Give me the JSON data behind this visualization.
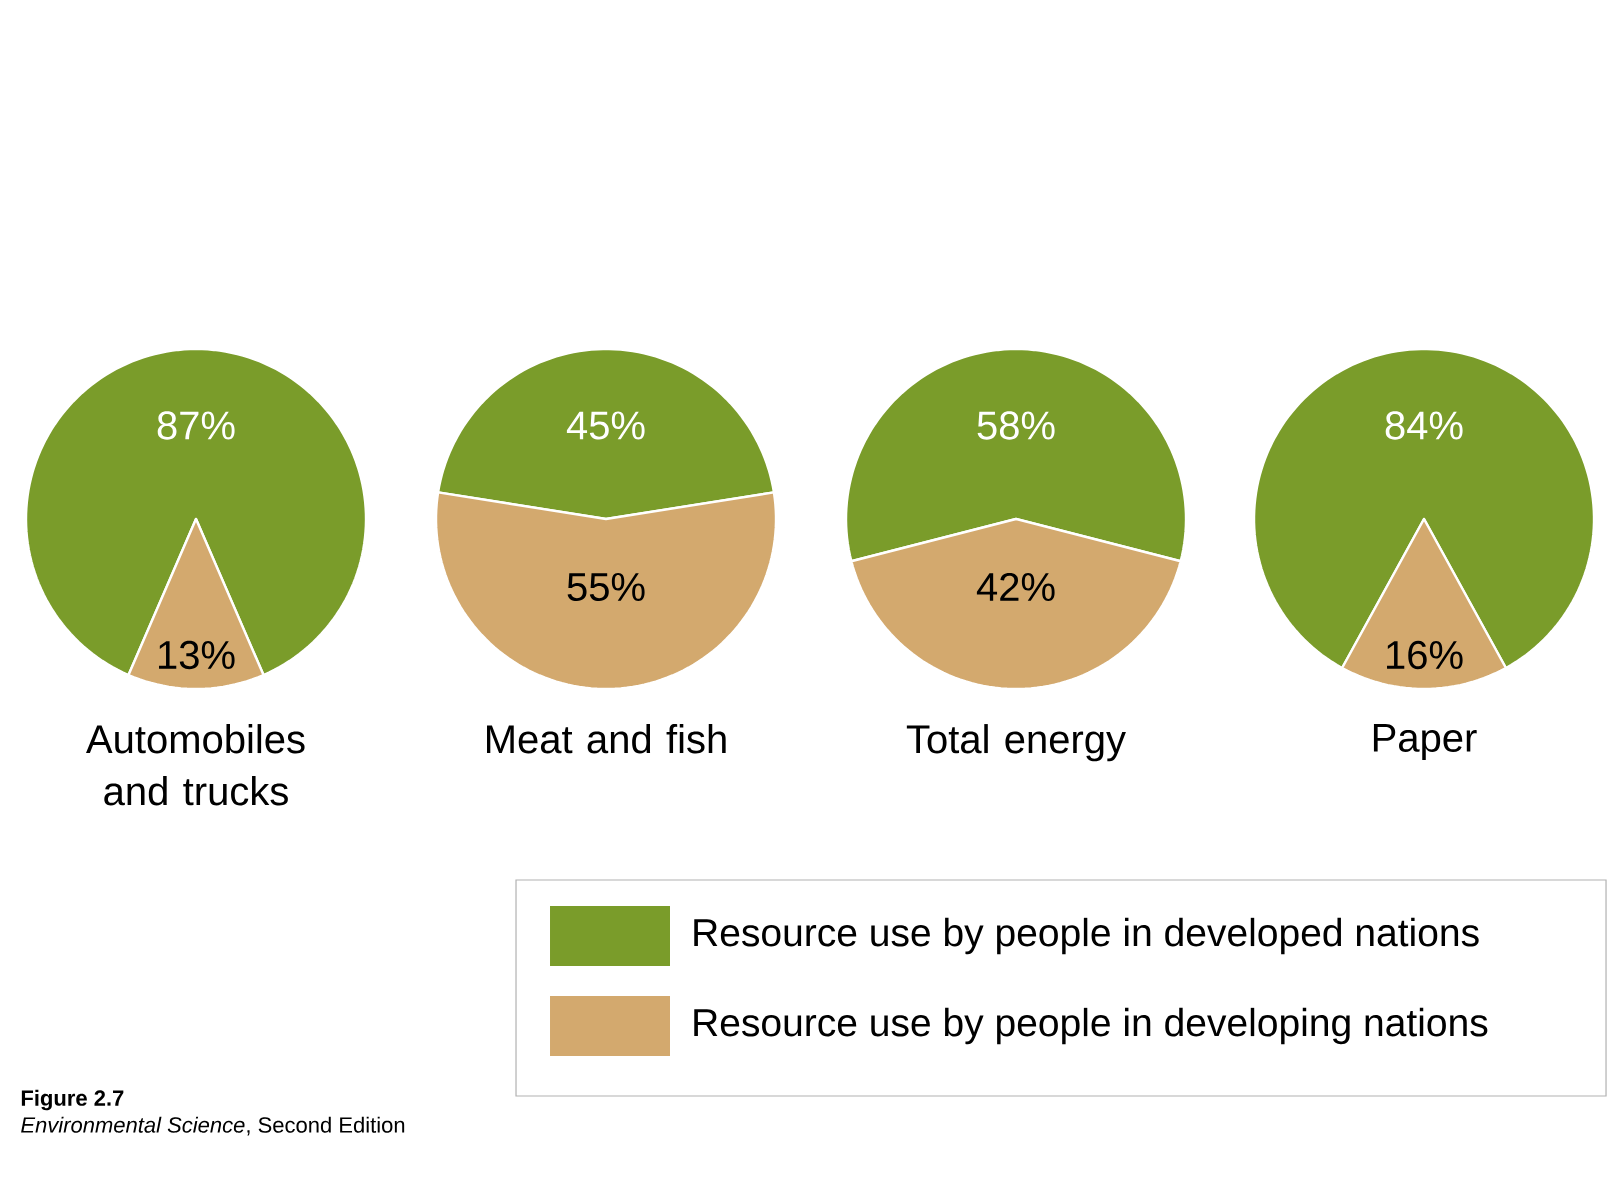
{
  "chart_data": [
    {
      "type": "pie",
      "title": "Automobiles and trucks",
      "categories": [
        "Resource use by people in developed nations",
        "Resource use by people in developing nations"
      ],
      "values": [
        87,
        13
      ],
      "value_labels": [
        "87%",
        "13%"
      ],
      "colors": [
        "#7a9c2a",
        "#d3a96e"
      ],
      "legend": "bottom right",
      "annotations": [
        "**Figure 2.7**",
        "*Environmental Science*, Second Edition"
      ]
    },
    {
      "type": "pie",
      "title": "Meat and fish",
      "categories": [
        null,
        null
      ],
      "values": [
        45,
        55
      ],
      "value_labels": [
        "45%",
        "55%"
      ],
      "colors": [
        "#7a9c2a",
        "#d3a96e"
      ]
    },
    {
      "type": "pie",
      "title": "Total energy",
      "categories": [
        null,
        null
      ],
      "values": [
        58,
        42
      ],
      "value_labels": [
        "58%",
        "42%"
      ],
      "colors": [
        "#7a9c2a",
        "#d3a96e"
      ]
    },
    {
      "type": "pie",
      "title": "Paper",
      "categories": [
        null,
        null
      ],
      "values": [
        84,
        16
      ],
      "value_labels": [
        "84%",
        "16%"
      ],
      "colors": [
        "#7a9c2a",
        "#d3a96e"
      ]
    }
  ]
}
